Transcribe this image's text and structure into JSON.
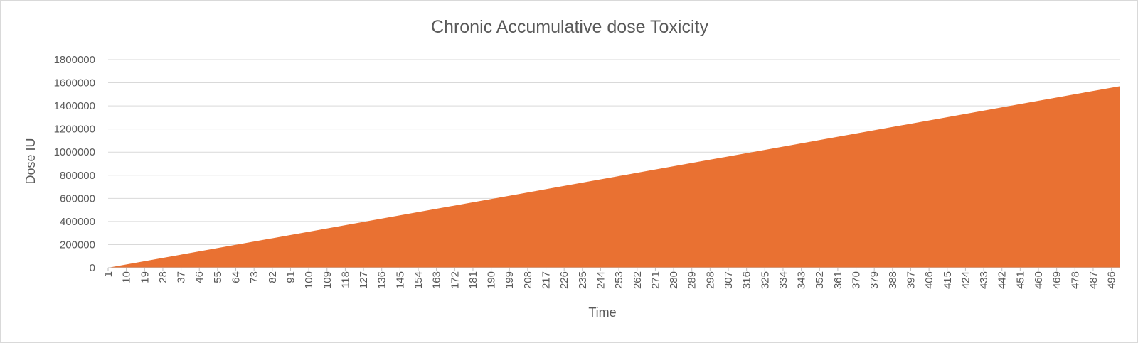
{
  "chart_data": {
    "type": "area",
    "title": "Chronic Accumulative dose Toxicity",
    "xlabel": "Time",
    "ylabel": "Dose IU",
    "x_start": 1,
    "x_end": 500,
    "x_tick_labels": [
      "1",
      "10",
      "19",
      "28",
      "37",
      "46",
      "55",
      "64",
      "73",
      "82",
      "91",
      "100",
      "109",
      "118",
      "127",
      "136",
      "145",
      "154",
      "163",
      "172",
      "181",
      "190",
      "199",
      "208",
      "217",
      "226",
      "235",
      "244",
      "253",
      "262",
      "271",
      "280",
      "289",
      "298",
      "307",
      "316",
      "325",
      "334",
      "343",
      "352",
      "361",
      "370",
      "379",
      "388",
      "397",
      "406",
      "415",
      "424",
      "433",
      "442",
      "451",
      "460",
      "469",
      "478",
      "487",
      "496"
    ],
    "y_ticks": [
      0,
      200000,
      400000,
      600000,
      800000,
      1000000,
      1200000,
      1400000,
      1600000,
      1800000
    ],
    "ylim": [
      0,
      1800000
    ],
    "grid": true,
    "legend": "none",
    "series": [
      {
        "color": "#E97132",
        "x": [
          1,
          500
        ],
        "values": [
          0,
          1570000
        ]
      }
    ]
  }
}
